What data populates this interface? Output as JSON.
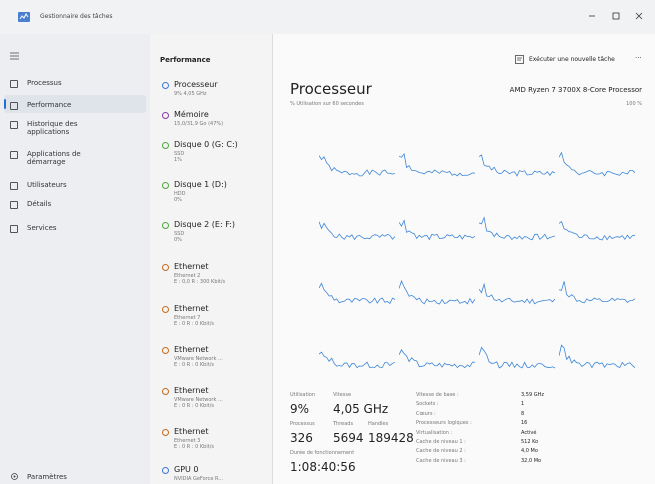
{
  "window": {
    "title": "Gestionnaire des tâches"
  },
  "nav": {
    "items": [
      "Processus",
      "Performance",
      "Historique des applications",
      "Applications de démarrage",
      "Utilisateurs",
      "Détails",
      "Services"
    ],
    "settings": "Paramètres"
  },
  "header": {
    "title": "Performance",
    "run_task": "Exécuter une nouvelle tâche",
    "more": "···"
  },
  "resources": [
    {
      "name": "Processeur",
      "details": [
        "9% 4,05 GHz"
      ]
    },
    {
      "name": "Mémoire",
      "details": [
        "15,0/31,9 Go (47%)"
      ]
    },
    {
      "name": "Disque 0 (G: C:)",
      "details": [
        "SSD",
        "1%"
      ]
    },
    {
      "name": "Disque 1 (D:)",
      "details": [
        "HDD",
        "0%"
      ]
    },
    {
      "name": "Disque 2 (E: F:)",
      "details": [
        "SSD",
        "0%"
      ]
    },
    {
      "name": "Ethernet",
      "details": [
        "Ethernet 2",
        "E : 0,0 R : 300 Kbit/s"
      ]
    },
    {
      "name": "Ethernet",
      "details": [
        "Ethernet 7",
        "E : 0 R : 0 Kbit/s"
      ]
    },
    {
      "name": "Ethernet",
      "details": [
        "VMware Network ...",
        "E : 0 R : 0 Kbit/s"
      ]
    },
    {
      "name": "Ethernet",
      "details": [
        "VMware Network ...",
        "E : 0 R : 0 Kbit/s"
      ]
    },
    {
      "name": "Ethernet",
      "details": [
        "Ethernet 3",
        "E : 0 R : 0 Kbit/s"
      ]
    },
    {
      "name": "GPU 0",
      "details": [
        "NVIDIA GeForce R..."
      ]
    }
  ],
  "main": {
    "title": "Processeur",
    "cpu_name": "AMD Ryzen 7 3700X 8-Core Processor",
    "graph_caption": "% Utilisation sur 60 secondes",
    "graph_max": "100 %"
  },
  "stats": {
    "utilisation": {
      "label": "Utilisation",
      "value": "9%"
    },
    "speed": {
      "label": "Vitesse",
      "value": "4,05 GHz"
    },
    "processes": {
      "label": "Processus",
      "value": "326"
    },
    "threads": {
      "label": "Threads",
      "value": "5694"
    },
    "handles": {
      "label": "Handles",
      "value": "189428"
    },
    "uptime": {
      "label": "Durée de fonctionnement",
      "value": "1:08:40:56"
    }
  },
  "specs": [
    {
      "label": "Vitesse de base :",
      "value": "3,59 GHz"
    },
    {
      "label": "Sockets :",
      "value": "1"
    },
    {
      "label": "Cœurs :",
      "value": "8"
    },
    {
      "label": "Processeurs logiques :",
      "value": "16"
    },
    {
      "label": "Virtualisation :",
      "value": "Activé"
    },
    {
      "label": "Cache de niveau 1 :",
      "value": "512 Ko"
    },
    {
      "label": "Cache de niveau 2 :",
      "value": "4,0 Mo"
    },
    {
      "label": "Cache de niveau 3 :",
      "value": "32,0 Mo"
    }
  ]
}
